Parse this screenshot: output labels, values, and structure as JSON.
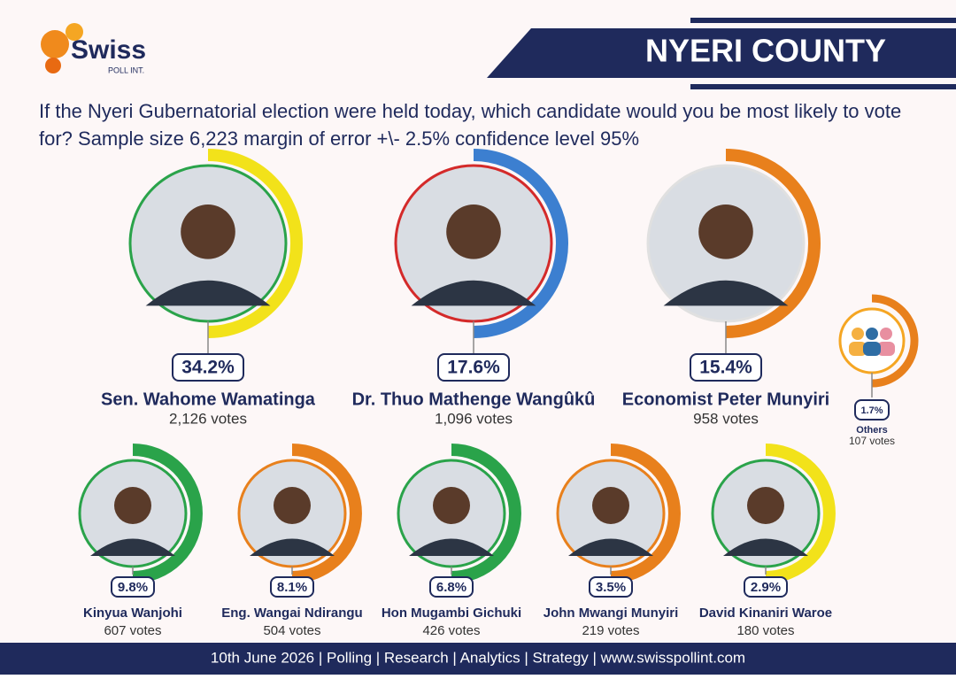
{
  "logo": {
    "name": "Swiss",
    "sub": "POLL INT."
  },
  "header": {
    "title": "NYERI COUNTY"
  },
  "question": "If the Nyeri Gubernatorial election were held today, which candidate would you be most likely to vote for? Sample size 6,223 margin of error +\\- 2.5% confidence level 95%",
  "candidates": [
    {
      "name": "Sen. Wahome Wamatinga",
      "percent": "34.2%",
      "votes": "2,126 votes"
    },
    {
      "name": "Dr. Thuo Mathenge Wangûkû",
      "percent": "17.6%",
      "votes": "1,096 votes"
    },
    {
      "name": "Economist Peter Munyiri",
      "percent": "15.4%",
      "votes": "958 votes"
    },
    {
      "name": "Others",
      "percent": "1.7%",
      "votes": "107 votes"
    },
    {
      "name": "Kinyua Wanjohi",
      "percent": "9.8%",
      "votes": "607 votes"
    },
    {
      "name": "Eng. Wangai Ndirangu",
      "percent": "8.1%",
      "votes": "504 votes"
    },
    {
      "name": "Hon Mugambi Gichuki",
      "percent": "6.8%",
      "votes": "426 votes"
    },
    {
      "name": "John Mwangi Munyiri",
      "percent": "3.5%",
      "votes": "219 votes"
    },
    {
      "name": "David Kinaniri Waroe",
      "percent": "2.9%",
      "votes": "180 votes"
    }
  ],
  "footer": "10th June 2026 | Polling | Research | Analytics | Strategy | www.swisspollint.com"
}
